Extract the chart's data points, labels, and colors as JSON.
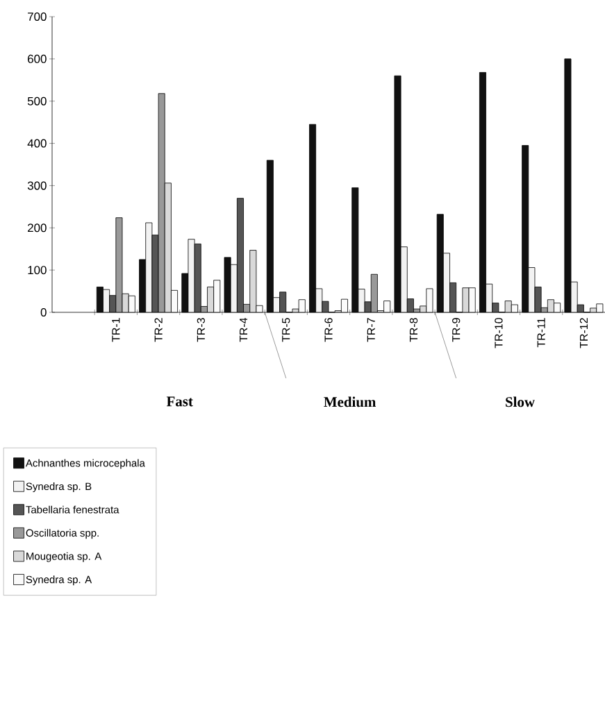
{
  "chart_data": {
    "type": "bar",
    "categories": [
      null,
      "TR-1",
      "TR-2",
      "TR-3",
      "TR-4",
      "TR-5",
      "TR-6",
      "TR-7",
      "TR-8",
      "TR-9",
      "TR-10",
      "TR-11",
      "TR-12"
    ],
    "series": [
      {
        "name": "Achnanthes microcephala",
        "color": "#111111",
        "values": [
          null,
          60,
          125,
          92,
          130,
          360,
          445,
          295,
          560,
          232,
          568,
          395,
          600
        ]
      },
      {
        "name": "Synedra sp. B",
        "color": "#f2f2f2",
        "values": [
          null,
          54,
          212,
          173,
          113,
          35,
          56,
          55,
          155,
          140,
          67,
          106,
          72
        ]
      },
      {
        "name": "Tabellaria fenestrata",
        "color": "#555555",
        "values": [
          null,
          40,
          183,
          162,
          270,
          48,
          26,
          25,
          32,
          70,
          22,
          60,
          18
        ]
      },
      {
        "name": "Oscillatoria spp.",
        "color": "#999999",
        "values": [
          null,
          224,
          518,
          14,
          19,
          0,
          0,
          90,
          8,
          0,
          0,
          11,
          0
        ]
      },
      {
        "name": "Mougeotia sp. A",
        "color": "#d9d9d9",
        "values": [
          null,
          44,
          306,
          60,
          147,
          8,
          4,
          4,
          15,
          58,
          27,
          30,
          10
        ]
      },
      {
        "name": "Synedra sp. A",
        "color": "#fafafa",
        "values": [
          null,
          39,
          52,
          76,
          16,
          30,
          31,
          27,
          56,
          58,
          18,
          22,
          20
        ]
      }
    ],
    "ylim": [
      0,
      700
    ],
    "yticks": [
      0,
      100,
      200,
      300,
      400,
      500,
      600,
      700
    ],
    "annotations": [
      "Fast",
      "Medium",
      "Slow"
    ],
    "legend": "bottom left"
  }
}
